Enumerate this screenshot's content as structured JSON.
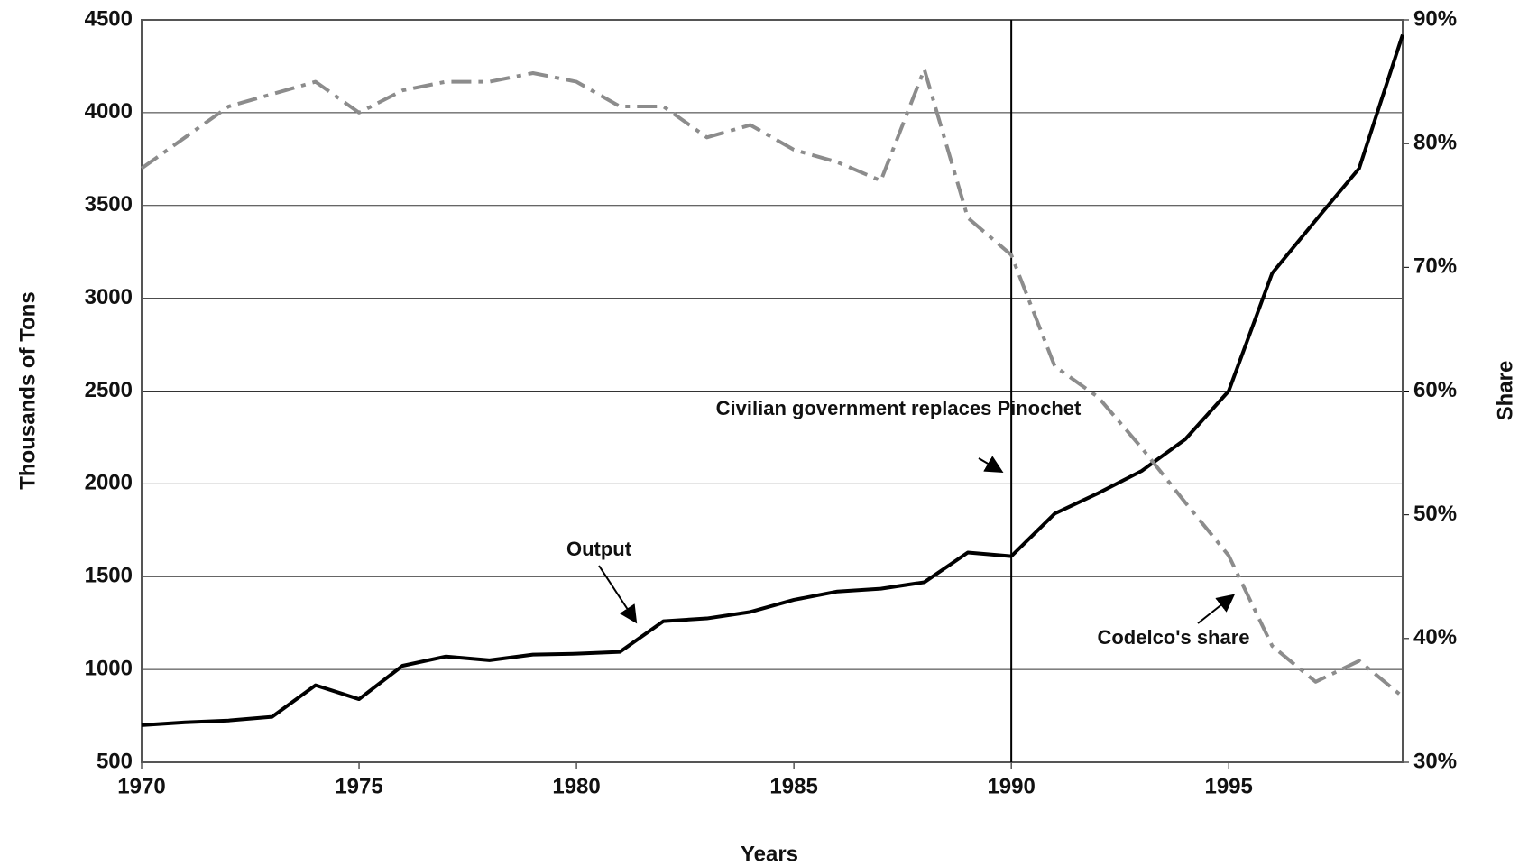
{
  "chart_data": {
    "type": "line",
    "x_label": "Years",
    "y_label": "Thousands of Tons",
    "y2_label": "Share",
    "x": [
      1970,
      1971,
      1972,
      1973,
      1974,
      1975,
      1976,
      1977,
      1978,
      1979,
      1980,
      1981,
      1982,
      1983,
      1984,
      1985,
      1986,
      1987,
      1988,
      1989,
      1990,
      1991,
      1992,
      1993,
      1994,
      1995,
      1996,
      1997,
      1998,
      1999
    ],
    "series": [
      {
        "name": "Output",
        "color": "#000000",
        "style": "solid",
        "values": [
          700,
          715,
          725,
          745,
          915,
          840,
          1020,
          1070,
          1050,
          1080,
          1085,
          1095,
          1260,
          1275,
          1310,
          1375,
          1420,
          1435,
          1470,
          1630,
          1610,
          1840,
          1950,
          2070,
          2240,
          2500,
          3135,
          3420,
          3700,
          4420
        ]
      },
      {
        "name": "Codelco's share",
        "color": "#8c8c8c",
        "style": "dash-dot",
        "axis": "y2",
        "values": [
          78,
          80.5,
          83,
          84,
          85,
          82.5,
          84.3,
          85,
          85,
          85.7,
          85,
          83,
          83,
          80.5,
          81.5,
          79.5,
          78.5,
          77,
          86,
          74,
          71,
          62,
          59.5,
          55.4,
          51,
          46.7,
          39.4,
          36.5,
          38.2,
          35.3
        ]
      }
    ],
    "xlim": [
      1970,
      1999
    ],
    "xticks": [
      1970,
      1975,
      1980,
      1985,
      1990,
      1995
    ],
    "ylim": [
      500,
      4500
    ],
    "yticks": [
      500,
      1000,
      1500,
      2000,
      2500,
      3000,
      3500,
      4000,
      4500
    ],
    "y2lim": [
      30,
      90
    ],
    "y2ticks": [
      {
        "value": 30,
        "label": "30%"
      },
      {
        "value": 40,
        "label": "40%"
      },
      {
        "value": 50,
        "label": "50%"
      },
      {
        "value": 60,
        "label": "60%"
      },
      {
        "value": 70,
        "label": "70%"
      },
      {
        "value": 80,
        "label": "80%"
      },
      {
        "value": 90,
        "label": "90%"
      }
    ],
    "grid": true,
    "vlines": [
      1990
    ],
    "annotations": [
      "Civilian government replaces Pinochet",
      "Output",
      "Codelco's share"
    ]
  }
}
